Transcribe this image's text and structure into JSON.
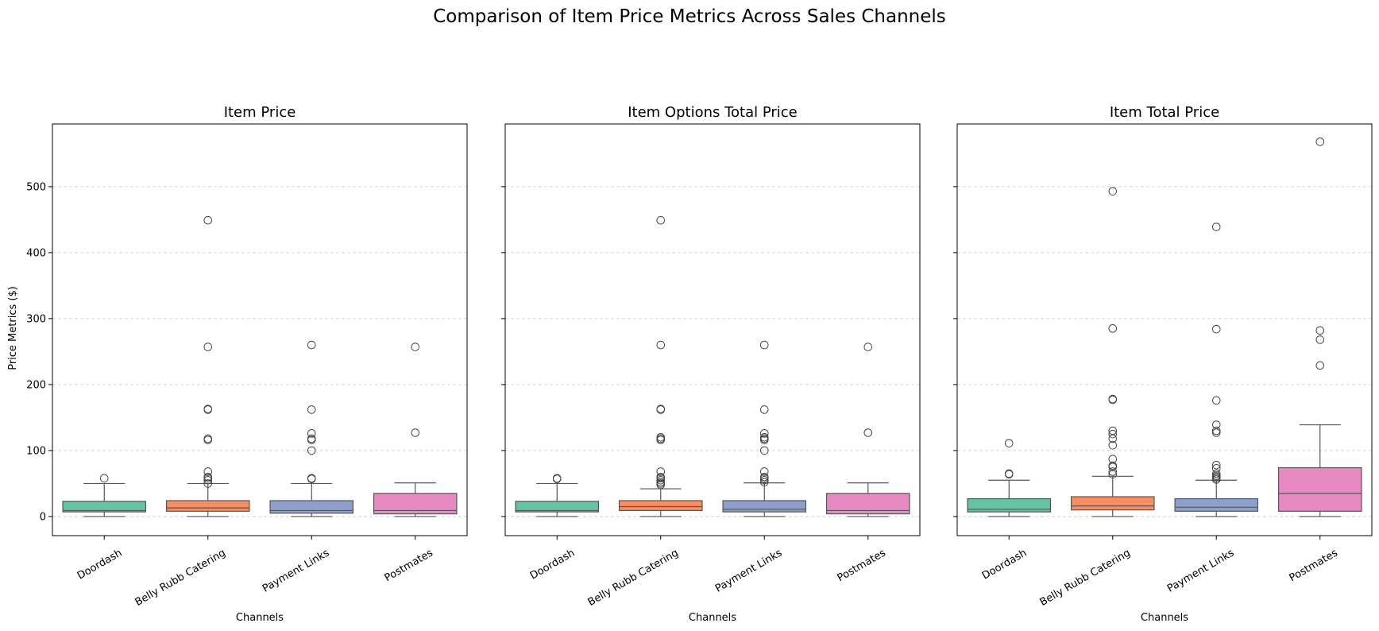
{
  "chart_data": {
    "type": "box",
    "title": "Comparison of Item Price Metrics Across Sales Channels",
    "categories": [
      "Doordash",
      "Belly Rubb Catering",
      "Payment Links",
      "Postmates"
    ],
    "ylabel": "Price Metrics ($)",
    "xlabel": "Channels",
    "ylim": [
      -29,
      595
    ],
    "yticks": [
      0,
      100,
      200,
      300,
      400,
      500
    ],
    "grid": "y dashed",
    "colors": [
      "#66c2a5",
      "#fc8d62",
      "#8da0cb",
      "#e78ac3"
    ],
    "panels": [
      {
        "title": "Item Price",
        "boxes": [
          {
            "category": "Doordash",
            "q1": 7,
            "median": 9,
            "q3": 23,
            "whisker_low": 0,
            "whisker_high": 50,
            "outliers": [
              58
            ]
          },
          {
            "category": "Belly Rubb Catering",
            "q1": 8,
            "median": 13,
            "q3": 24,
            "whisker_low": 0,
            "whisker_high": 50,
            "outliers": [
              50,
              55,
              58,
              60,
              68,
              116,
              118,
              162,
              163,
              257,
              449
            ]
          },
          {
            "category": "Payment Links",
            "q1": 5,
            "median": 9,
            "q3": 24,
            "whisker_low": 0,
            "whisker_high": 50,
            "outliers": [
              57,
              58,
              100,
              116,
              118,
              126,
              162,
              260
            ]
          },
          {
            "category": "Postmates",
            "q1": 4,
            "median": 9,
            "q3": 35,
            "whisker_low": 0,
            "whisker_high": 51,
            "outliers": [
              127,
              257
            ]
          }
        ]
      },
      {
        "title": "Item Options Total Price",
        "boxes": [
          {
            "category": "Doordash",
            "q1": 7,
            "median": 9,
            "q3": 23,
            "whisker_low": 0,
            "whisker_high": 50,
            "outliers": [
              57,
              58
            ]
          },
          {
            "category": "Belly Rubb Catering",
            "q1": 9,
            "median": 15,
            "q3": 24,
            "whisker_low": 0,
            "whisker_high": 42,
            "outliers": [
              48,
              50,
              52,
              55,
              58,
              60,
              68,
              116,
              118,
              120,
              162,
              163,
              260,
              449
            ]
          },
          {
            "category": "Payment Links",
            "q1": 7,
            "median": 11,
            "q3": 24,
            "whisker_low": 0,
            "whisker_high": 51,
            "outliers": [
              52,
              55,
              58,
              60,
              68,
              100,
              116,
              118,
              120,
              126,
              162,
              260
            ]
          },
          {
            "category": "Postmates",
            "q1": 4,
            "median": 9,
            "q3": 35,
            "whisker_low": 0,
            "whisker_high": 51,
            "outliers": [
              127,
              257
            ]
          }
        ]
      },
      {
        "title": "Item Total Price",
        "boxes": [
          {
            "category": "Doordash",
            "q1": 7,
            "median": 11,
            "q3": 27,
            "whisker_low": 0,
            "whisker_high": 55,
            "outliers": [
              64,
              65,
              111
            ]
          },
          {
            "category": "Belly Rubb Catering",
            "q1": 10,
            "median": 16,
            "q3": 30,
            "whisker_low": 0,
            "whisker_high": 61,
            "outliers": [
              64,
              68,
              75,
              77,
              87,
              108,
              118,
              125,
              130,
              177,
              178,
              285,
              493
            ]
          },
          {
            "category": "Payment Links",
            "q1": 8,
            "median": 14,
            "q3": 27,
            "whisker_low": 0,
            "whisker_high": 55,
            "outliers": [
              56,
              58,
              60,
              62,
              65,
              73,
              78,
              127,
              130,
              139,
              176,
              284,
              439
            ]
          },
          {
            "category": "Postmates",
            "q1": 8,
            "median": 35,
            "q3": 74,
            "whisker_low": 0,
            "whisker_high": 139,
            "outliers": [
              229,
              268,
              282,
              568
            ]
          }
        ]
      }
    ]
  }
}
